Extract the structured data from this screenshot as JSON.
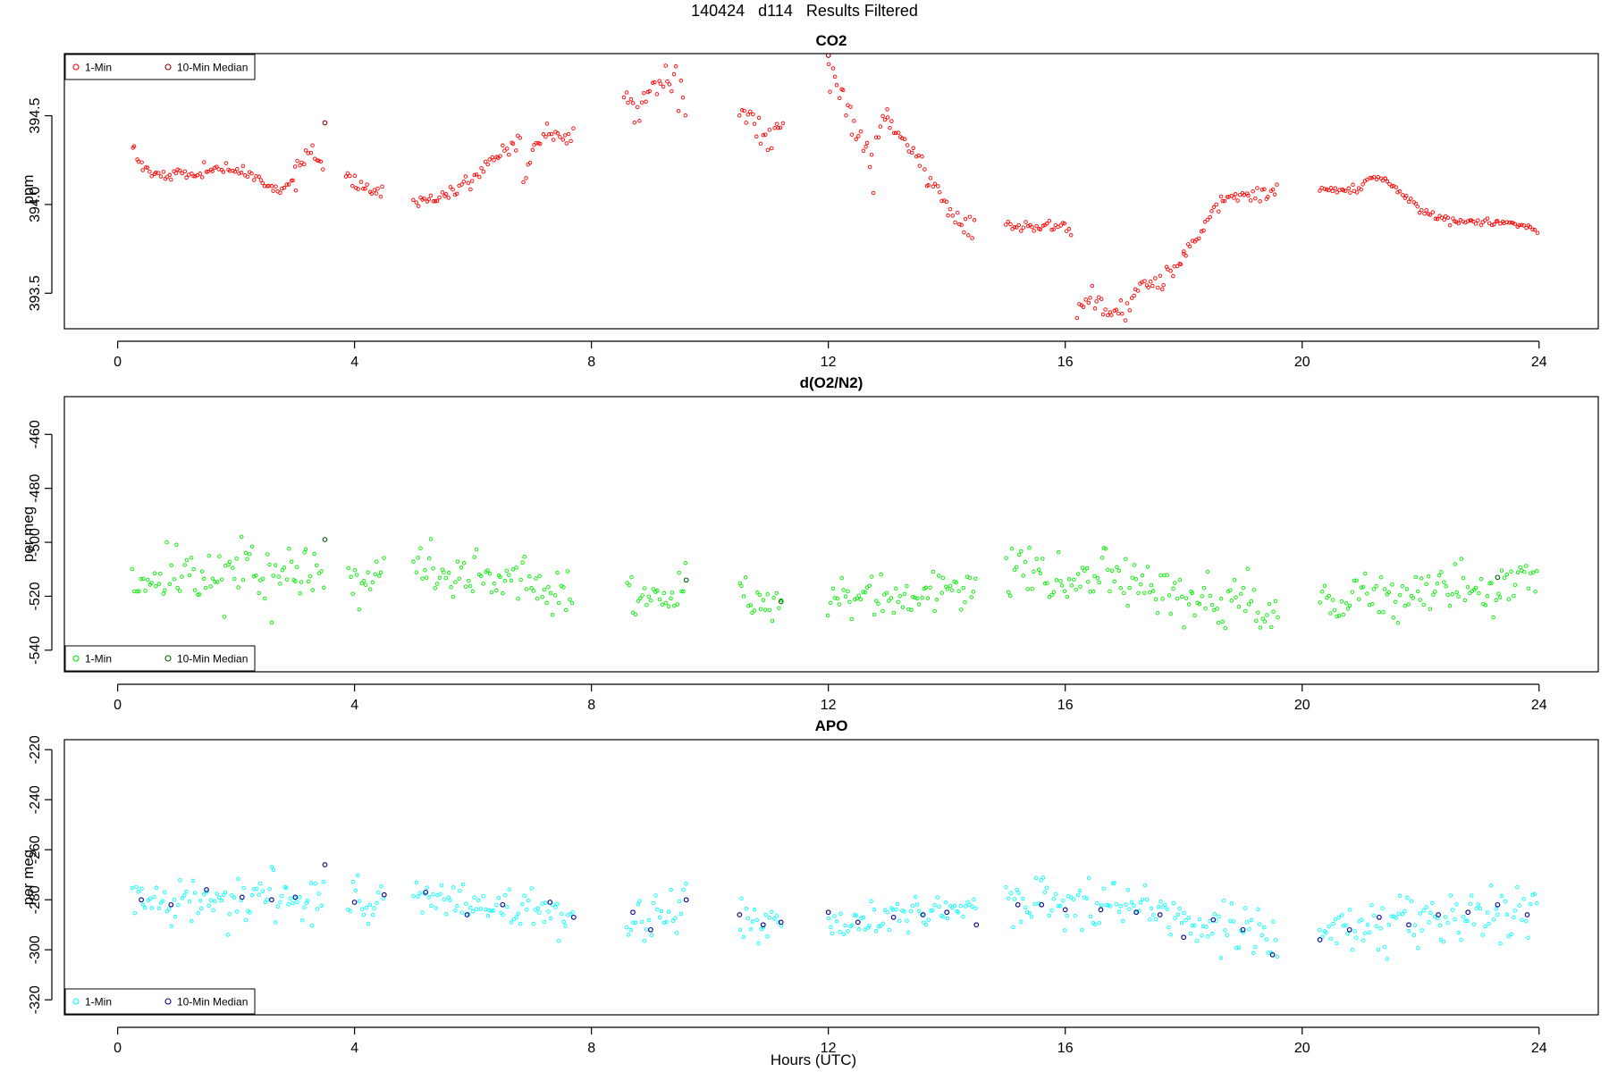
{
  "main_title": "140424   d114   Results Filtered",
  "x_axis_label": "Hours (UTC)",
  "colors": {
    "co2_1min": "#ff0000",
    "co2_median": "#8b0000",
    "o2n2_1min": "#00ee00",
    "o2n2_median": "#006400",
    "apo_1min": "#00ffff",
    "apo_median": "#00008b"
  },
  "chart_data": [
    {
      "type": "scatter",
      "title": "CO2",
      "ylabel": "ppm",
      "xlim": [
        -0.9,
        25
      ],
      "ylim": [
        393.3,
        394.85
      ],
      "x_ticks": [
        0,
        4,
        8,
        12,
        16,
        20,
        24
      ],
      "y_ticks": [
        393.5,
        394.0,
        394.5
      ],
      "y_tick_labels": [
        "393.5",
        "394.0",
        "394.5"
      ],
      "legend": {
        "position": "top-left",
        "entries": [
          "1-Min",
          "10-Min Median"
        ]
      },
      "series": [
        {
          "name": "1-Min",
          "kind": "1min",
          "segments": [
            {
              "x": [
                0.25,
                0.5,
                0.75,
                1.0,
                1.25,
                1.5,
                1.75,
                2.0,
                2.25,
                2.5,
                2.75,
                3.0
              ],
              "y": [
                394.3,
                394.18,
                394.17,
                394.18,
                394.16,
                394.2,
                394.19,
                394.2,
                394.15,
                394.12,
                394.07,
                394.14
              ]
            },
            {
              "x": [
                3.0,
                3.25,
                3.5
              ],
              "y": [
                394.2,
                394.3,
                394.2
              ]
            },
            {
              "x": [
                3.85,
                4.0,
                4.25,
                4.5
              ],
              "y": [
                394.18,
                394.12,
                394.07,
                394.07
              ]
            },
            {
              "x": [
                5.0,
                5.5,
                6.0,
                6.5,
                6.8
              ],
              "y": [
                394.01,
                394.05,
                394.15,
                394.3,
                394.35
              ]
            },
            {
              "x": [
                6.85,
                7.0,
                7.25,
                7.5,
                7.7
              ],
              "y": [
                394.08,
                394.3,
                394.42,
                394.38,
                394.42
              ]
            },
            {
              "x": [
                8.55,
                8.75,
                9.0,
                9.25,
                9.6
              ],
              "y": [
                394.62,
                394.55,
                394.65,
                394.7,
                394.72
              ]
            },
            {
              "x": [
                10.5,
                10.75,
                11.0,
                11.25
              ],
              "y": [
                394.58,
                394.45,
                394.33,
                394.48
              ]
            },
            {
              "x": [
                12.0,
                12.25,
                12.5,
                12.75,
                13.0
              ],
              "y": [
                394.8,
                394.55,
                394.35,
                394.25,
                394.6
              ]
            },
            {
              "x": [
                13.0,
                13.25,
                13.5,
                13.75,
                14.0,
                14.25,
                14.5
              ],
              "y": [
                394.45,
                394.38,
                394.28,
                394.15,
                394.0,
                393.88,
                393.87
              ]
            },
            {
              "x": [
                15.0,
                15.25,
                15.5,
                15.75,
                16.0,
                16.1
              ],
              "y": [
                393.88,
                393.88,
                393.87,
                393.88,
                393.87,
                393.84
              ]
            },
            {
              "x": [
                16.2,
                16.4,
                16.6,
                16.8,
                17.0,
                17.25,
                17.5,
                17.75,
                18.0
              ],
              "y": [
                393.4,
                393.45,
                393.45,
                393.38,
                393.42,
                393.5,
                393.55,
                393.62,
                393.72
              ]
            },
            {
              "x": [
                18.0,
                18.25,
                18.5,
                18.75,
                19.0,
                19.25,
                19.5,
                19.6
              ],
              "y": [
                393.72,
                393.82,
                393.95,
                394.05,
                394.03,
                394.05,
                394.07,
                394.08
              ]
            },
            {
              "x": [
                20.3,
                20.6,
                20.9,
                21.2,
                21.4
              ],
              "y": [
                394.09,
                394.08,
                394.08,
                394.16,
                394.14
              ]
            },
            {
              "x": [
                21.4,
                21.7,
                22.0,
                22.3,
                22.6,
                22.9,
                23.2,
                23.5,
                23.8,
                24.0
              ],
              "y": [
                394.14,
                394.05,
                393.97,
                393.93,
                393.91,
                393.9,
                393.9,
                393.89,
                393.88,
                393.85
              ]
            }
          ],
          "noise": [
            0.018,
            0.02,
            0.018,
            0.02,
            0.025,
            0.07,
            0.045,
            0.07,
            0.03,
            0.012,
            0.035,
            0.02,
            0.01,
            0.01
          ]
        },
        {
          "name": "10-Min Median",
          "kind": "median",
          "points": [
            [
              3.5,
              394.46
            ],
            [
              12.0,
              394.84
            ]
          ]
        }
      ]
    },
    {
      "type": "scatter",
      "title": "d(O2/N2)",
      "ylabel": "per meg",
      "xlim": [
        -0.9,
        25
      ],
      "ylim": [
        -548,
        -446
      ],
      "x_ticks": [
        0,
        4,
        8,
        12,
        16,
        20,
        24
      ],
      "y_ticks": [
        -540,
        -520,
        -500,
        -480,
        -460
      ],
      "y_tick_labels": [
        "-540",
        "-520",
        "-500",
        "-480",
        "-460"
      ],
      "legend": {
        "position": "bottom-left",
        "entries": [
          "1-Min",
          "10-Min Median"
        ]
      },
      "series": [
        {
          "name": "1-Min",
          "kind": "1min",
          "segments": [
            {
              "x": [
                0.25,
                1.0,
                2.0,
                3.0,
                3.5
              ],
              "y": [
                -515,
                -513,
                -510,
                -511,
                -512
              ]
            },
            {
              "x": [
                3.9,
                4.25,
                4.5
              ],
              "y": [
                -510,
                -514,
                -512
              ]
            },
            {
              "x": [
                5.0,
                6.0,
                7.0,
                7.7
              ],
              "y": [
                -508,
                -515,
                -514,
                -520
              ]
            },
            {
              "x": [
                8.6,
                9.0,
                9.6
              ],
              "y": [
                -520,
                -522,
                -515
              ]
            },
            {
              "x": [
                10.5,
                10.9,
                11.2
              ],
              "y": [
                -520,
                -524,
                -521
              ]
            },
            {
              "x": [
                12.0,
                13.0,
                14.0,
                14.5
              ],
              "y": [
                -522,
                -520,
                -516,
                -517
              ]
            },
            {
              "x": [
                15.0,
                16.0,
                17.0,
                17.5,
                18.0,
                19.0,
                19.6
              ],
              "y": [
                -510,
                -512,
                -512,
                -513,
                -520,
                -522,
                -528
              ]
            },
            {
              "x": [
                20.3,
                21.0,
                22.0,
                23.0,
                24.0
              ],
              "y": [
                -525,
                -521,
                -519,
                -517,
                -514
              ]
            }
          ],
          "noise": [
            5.5,
            4.0,
            4.5,
            5.0,
            4.0,
            4.0,
            5.5,
            5.0
          ]
        },
        {
          "name": "10-Min Median",
          "kind": "median",
          "points": [
            [
              3.5,
              -499
            ],
            [
              9.6,
              -514
            ],
            [
              11.2,
              -522
            ],
            [
              23.3,
              -513
            ]
          ]
        }
      ]
    },
    {
      "type": "scatter",
      "title": "APO",
      "ylabel": "per meg",
      "xlim": [
        -0.9,
        25
      ],
      "ylim": [
        -326,
        -216
      ],
      "x_ticks": [
        0,
        4,
        8,
        12,
        16,
        20,
        24
      ],
      "y_ticks": [
        -320,
        -300,
        -280,
        -260,
        -240,
        -220
      ],
      "y_tick_labels": [
        "-320",
        "-300",
        "-280",
        "-260",
        "-240",
        "-220"
      ],
      "legend": {
        "position": "bottom-left",
        "entries": [
          "1-Min",
          "10-Min Median"
        ]
      },
      "series": [
        {
          "name": "1-Min",
          "kind": "1min",
          "segments": [
            {
              "x": [
                0.25,
                1.0,
                2.0,
                3.0,
                3.5
              ],
              "y": [
                -282,
                -281,
                -279,
                -279,
                -276
              ]
            },
            {
              "x": [
                3.9,
                4.25,
                4.5
              ],
              "y": [
                -279,
                -283,
                -280
              ]
            },
            {
              "x": [
                5.0,
                6.0,
                7.0,
                7.7
              ],
              "y": [
                -278,
                -283,
                -282,
                -286
              ]
            },
            {
              "x": [
                8.6,
                9.0,
                9.6
              ],
              "y": [
                -286,
                -290,
                -280
              ]
            },
            {
              "x": [
                10.5,
                10.9,
                11.2
              ],
              "y": [
                -287,
                -292,
                -288
              ]
            },
            {
              "x": [
                12.0,
                13.0,
                14.0,
                14.5
              ],
              "y": [
                -288,
                -287,
                -284,
                -285
              ]
            },
            {
              "x": [
                15.0,
                16.0,
                17.0,
                17.5,
                18.0,
                19.0,
                19.6
              ],
              "y": [
                -281,
                -283,
                -283,
                -285,
                -290,
                -292,
                -297
              ]
            },
            {
              "x": [
                20.3,
                21.0,
                22.0,
                23.0,
                24.0
              ],
              "y": [
                -293,
                -290,
                -288,
                -286,
                -284
              ]
            }
          ],
          "noise": [
            5.5,
            4.0,
            4.5,
            5.0,
            4.0,
            4.0,
            5.5,
            5.0
          ]
        },
        {
          "name": "10-Min Median",
          "kind": "median",
          "points": [
            [
              0.4,
              -280
            ],
            [
              0.9,
              -282
            ],
            [
              1.5,
              -276
            ],
            [
              2.1,
              -279
            ],
            [
              2.6,
              -280
            ],
            [
              3.0,
              -279
            ],
            [
              3.5,
              -266
            ],
            [
              4.0,
              -281
            ],
            [
              4.5,
              -278
            ],
            [
              5.2,
              -277
            ],
            [
              5.9,
              -286
            ],
            [
              6.5,
              -282
            ],
            [
              7.3,
              -281
            ],
            [
              7.7,
              -287
            ],
            [
              8.7,
              -285
            ],
            [
              9.0,
              -292
            ],
            [
              9.6,
              -280
            ],
            [
              10.5,
              -286
            ],
            [
              10.9,
              -290
            ],
            [
              11.2,
              -289
            ],
            [
              12.0,
              -285
            ],
            [
              12.5,
              -289
            ],
            [
              13.1,
              -287
            ],
            [
              13.6,
              -286
            ],
            [
              14.0,
              -285
            ],
            [
              14.5,
              -290
            ],
            [
              15.2,
              -282
            ],
            [
              15.6,
              -282
            ],
            [
              16.0,
              -284
            ],
            [
              16.6,
              -284
            ],
            [
              17.2,
              -285
            ],
            [
              17.6,
              -286
            ],
            [
              18.0,
              -295
            ],
            [
              18.5,
              -288
            ],
            [
              19.0,
              -292
            ],
            [
              19.5,
              -302
            ],
            [
              20.3,
              -296
            ],
            [
              20.8,
              -292
            ],
            [
              21.3,
              -287
            ],
            [
              21.8,
              -290
            ],
            [
              22.3,
              -286
            ],
            [
              22.8,
              -285
            ],
            [
              23.3,
              -282
            ],
            [
              23.8,
              -286
            ]
          ]
        }
      ]
    }
  ]
}
